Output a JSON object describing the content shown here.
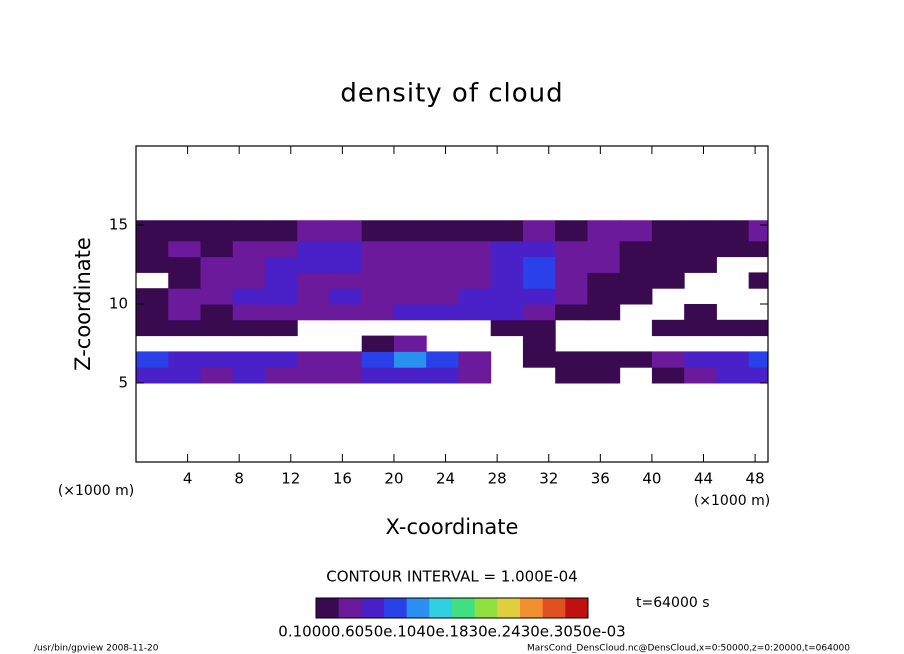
{
  "chart_data": {
    "type": "heatmap",
    "title": "density of cloud",
    "x_label": "X-coordinate",
    "y_label": "Z-coordinate",
    "x_unit_labels": [
      "(×1000 m)",
      "(×1000 m)"
    ],
    "contour_interval": "CONTOUR INTERVAL = 1.000E-04",
    "time_label": "t=64000 s",
    "colorbar_label": "0.10000.6050e.1040e.1830e.2430e.3050e-03",
    "footer_left": "/usr/bin/gpview   2008-11-20",
    "footer_right": "MarsCond_DensCloud.nc@DensCloud,x=0:50000,z=0:20000,t=064000",
    "xlim": [
      0,
      49
    ],
    "ylim": [
      0,
      20
    ],
    "xticks": [
      4,
      8,
      12,
      16,
      20,
      24,
      28,
      32,
      36,
      40,
      44,
      48
    ],
    "yticks": [
      5,
      10,
      15
    ],
    "clim": [
      0,
      0.0003
    ],
    "colorscale": [
      "#3a0a50",
      "#6a1a9a",
      "#4a20c8",
      "#2a40e8",
      "#2a90f0",
      "#30d0e0",
      "#40e080",
      "#90e040",
      "#e0d040",
      "#f09030",
      "#e05020",
      "#c01010"
    ],
    "x_bins": [
      0,
      2.5,
      5,
      7.5,
      10,
      12.5,
      15,
      17.5,
      20,
      22.5,
      25,
      27.5,
      30,
      32.5,
      35,
      37.5,
      40,
      42.5,
      45,
      47.5,
      49
    ],
    "y_bins": [
      5,
      6,
      7,
      8,
      9,
      10,
      11,
      12,
      13,
      14,
      15.3
    ],
    "z": [
      [
        6e-05,
        5e-05,
        4e-05,
        5e-05,
        4e-05,
        4e-05,
        4e-05,
        6e-05,
        6e-05,
        5e-05,
        4e-05,
        null,
        null,
        2e-05,
        1e-05,
        null,
        2e-05,
        4e-05,
        5e-05,
        6e-05
      ],
      [
        8e-05,
        6e-05,
        5e-05,
        6e-05,
        5e-05,
        4e-05,
        4e-05,
        8e-05,
        0.0001,
        9e-05,
        3e-05,
        null,
        2e-05,
        2e-05,
        1e-05,
        2e-05,
        4e-05,
        6e-05,
        6e-05,
        9e-05
      ],
      [
        null,
        null,
        null,
        null,
        null,
        null,
        null,
        2e-05,
        3e-05,
        null,
        null,
        null,
        2e-05,
        null,
        null,
        null,
        null,
        null,
        null,
        null
      ],
      [
        2e-05,
        2e-05,
        1e-05,
        1e-05,
        1e-05,
        null,
        null,
        null,
        null,
        null,
        null,
        2e-05,
        2e-05,
        null,
        null,
        null,
        1e-05,
        1e-05,
        1e-05,
        2e-05
      ],
      [
        2e-05,
        3e-05,
        2e-05,
        3e-05,
        4e-05,
        3e-05,
        4e-05,
        4e-05,
        6e-05,
        5e-05,
        5e-05,
        5e-05,
        4e-05,
        2e-05,
        1e-05,
        null,
        null,
        1e-05,
        null,
        null
      ],
      [
        1e-05,
        3e-05,
        4e-05,
        5e-05,
        5e-05,
        4e-05,
        6e-05,
        4e-05,
        4e-05,
        3e-05,
        5e-05,
        6e-05,
        5e-05,
        3e-05,
        2e-05,
        1e-05,
        null,
        null,
        null,
        null
      ],
      [
        null,
        1e-05,
        3e-05,
        4e-05,
        5e-05,
        4e-05,
        3e-05,
        4e-05,
        3e-05,
        3e-05,
        4e-05,
        5e-05,
        8e-05,
        4e-05,
        2e-05,
        2e-05,
        1e-05,
        null,
        null,
        1e-05
      ],
      [
        1e-05,
        2e-05,
        3e-05,
        4e-05,
        5e-05,
        6e-05,
        5e-05,
        4e-05,
        3e-05,
        4e-05,
        4e-05,
        5e-05,
        9e-05,
        4e-05,
        3e-05,
        2e-05,
        2e-05,
        2e-05,
        null,
        null
      ],
      [
        2e-05,
        3e-05,
        2e-05,
        3e-05,
        4e-05,
        6e-05,
        5e-05,
        4e-05,
        3e-05,
        3e-05,
        4e-05,
        5e-05,
        5e-05,
        4e-05,
        3e-05,
        2e-05,
        2e-05,
        2e-05,
        2e-05,
        2e-05
      ],
      [
        2e-05,
        2e-05,
        2e-05,
        2e-05,
        2e-05,
        3e-05,
        3e-05,
        2e-05,
        2e-05,
        2e-05,
        2e-05,
        2e-05,
        3e-05,
        2e-05,
        3e-05,
        4e-05,
        2e-05,
        2e-05,
        2e-05,
        3e-05
      ]
    ]
  }
}
